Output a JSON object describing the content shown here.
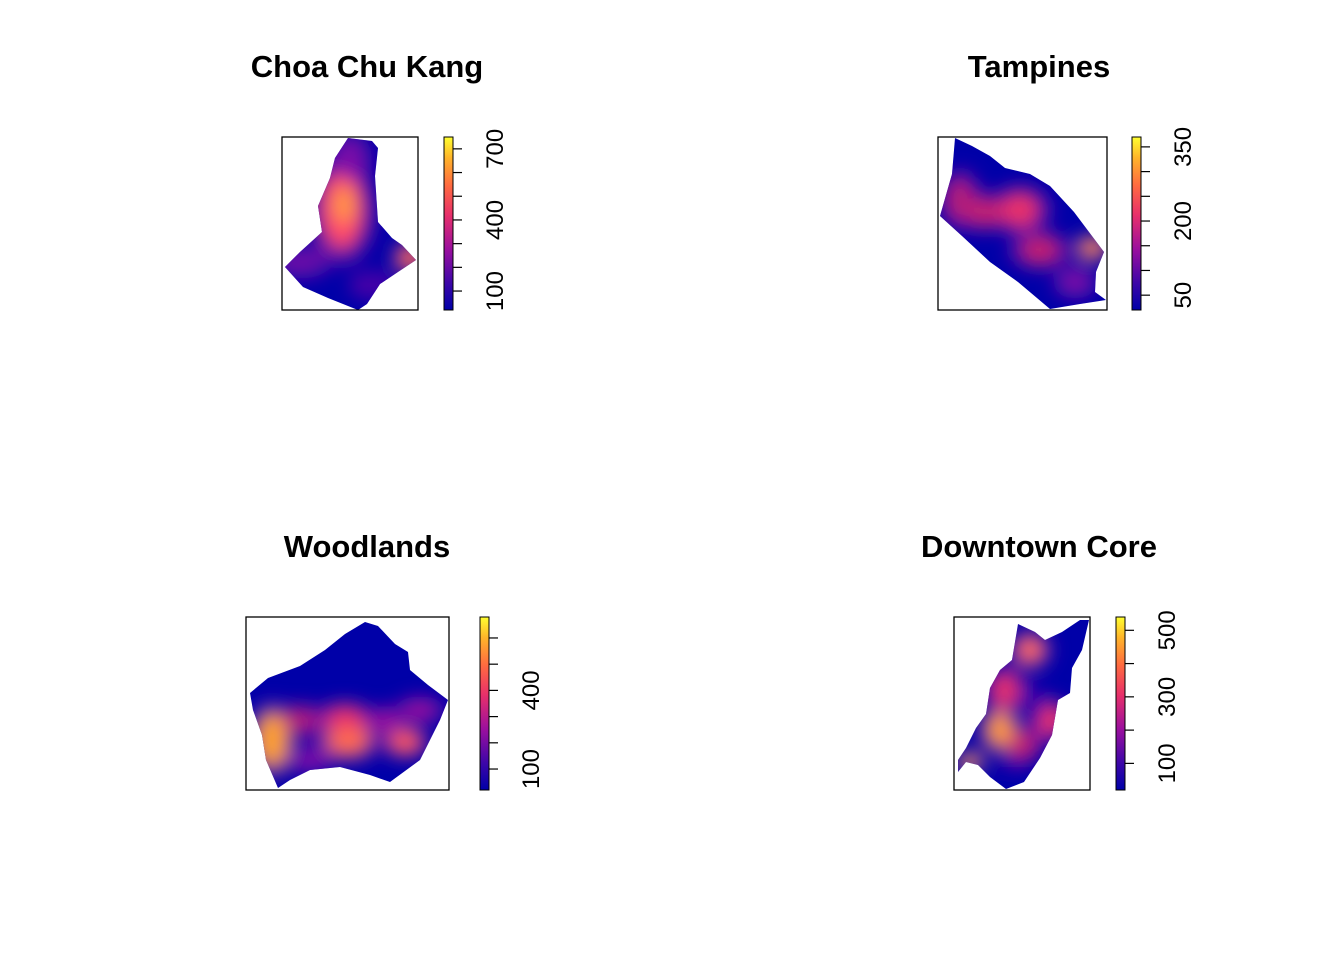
{
  "chart_data": [
    {
      "type": "heatmap",
      "title": "Choa Chu Kang",
      "legend_ticks": [
        100,
        200,
        300,
        400,
        500,
        600,
        700
      ],
      "legend_labels": [
        100,
        400,
        700
      ],
      "legend_range": [
        20,
        750
      ],
      "grid": false,
      "legend": "right",
      "colors": [
        "#0000a8",
        "#7a0aa8",
        "#e8306a",
        "#ff7a3a",
        "#ffd21a",
        "#ffff30"
      ]
    },
    {
      "type": "heatmap",
      "title": "Tampines",
      "legend_ticks": [
        50,
        100,
        150,
        200,
        250,
        300,
        350
      ],
      "legend_labels": [
        50,
        200,
        350
      ],
      "legend_range": [
        20,
        370
      ],
      "grid": false,
      "legend": "right",
      "colors": [
        "#0000a8",
        "#7a0aa8",
        "#e8306a",
        "#ff7a3a",
        "#ffd21a",
        "#ffff30"
      ]
    },
    {
      "type": "heatmap",
      "title": "Woodlands",
      "legend_ticks": [
        100,
        200,
        300,
        400,
        500,
        600
      ],
      "legend_labels": [
        100,
        400
      ],
      "legend_range": [
        20,
        680
      ],
      "grid": false,
      "legend": "right",
      "colors": [
        "#0000a8",
        "#7a0aa8",
        "#e8306a",
        "#ff7a3a",
        "#ffd21a",
        "#ffff30"
      ]
    },
    {
      "type": "heatmap",
      "title": "Downtown Core",
      "legend_ticks": [
        100,
        200,
        300,
        400,
        500
      ],
      "legend_labels": [
        100,
        300,
        500
      ],
      "legend_range": [
        20,
        540
      ],
      "grid": false,
      "legend": "right",
      "colors": [
        "#0000a8",
        "#7a0aa8",
        "#e8306a",
        "#ff7a3a",
        "#ffd21a",
        "#ffff30"
      ]
    }
  ]
}
